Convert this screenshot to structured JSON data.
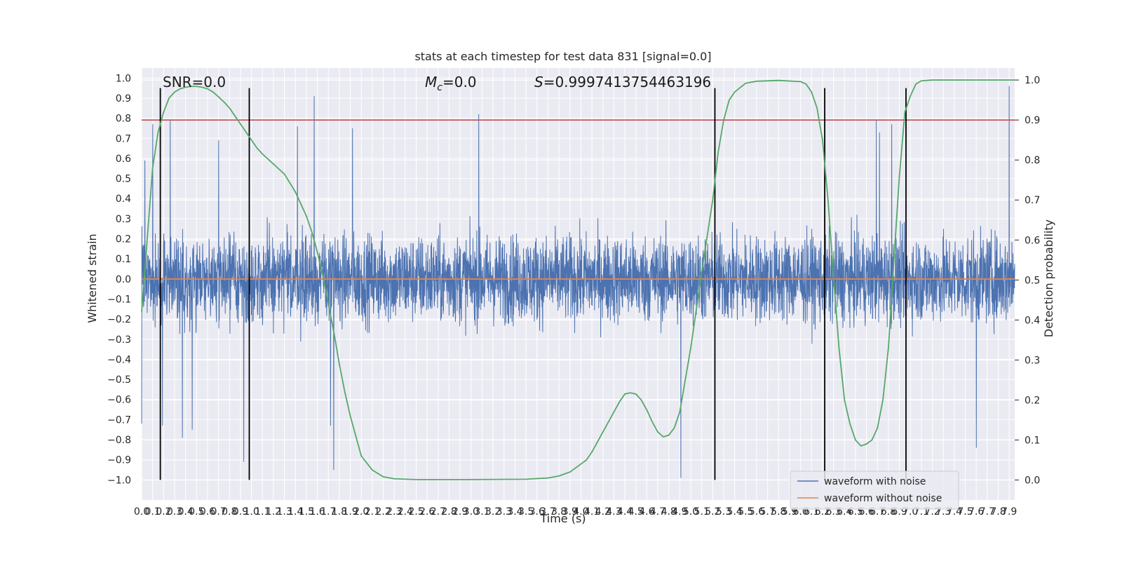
{
  "chart_data": {
    "type": "line",
    "title": "stats at each timestep for test data 831 [signal=0.0]",
    "xlabel": "Time (s)",
    "ylabel_left": "Whitened strain",
    "ylabel_right": "Detection probability",
    "xlim": [
      0.0,
      7.95
    ],
    "ylim_left": [
      -1.1,
      1.05
    ],
    "ylim_right": [
      -0.05,
      1.03
    ],
    "x_ticks": [
      "0.0",
      "0.1",
      "0.2",
      "0.3",
      "0.4",
      "0.5",
      "0.6",
      "0.7",
      "0.8",
      "0.9",
      "1.0",
      "1.1",
      "1.2",
      "1.3",
      "1.4",
      "1.5",
      "1.6",
      "1.7",
      "1.8",
      "1.9",
      "2.0",
      "2.1",
      "2.2",
      "2.3",
      "2.4",
      "2.5",
      "2.6",
      "2.7",
      "2.8",
      "2.9",
      "3.0",
      "3.1",
      "3.2",
      "3.3",
      "3.4",
      "3.5",
      "3.6",
      "3.7",
      "3.8",
      "3.9",
      "4.0",
      "4.1",
      "4.2",
      "4.3",
      "4.4",
      "4.5",
      "4.6",
      "4.7",
      "4.8",
      "4.9",
      "5.0",
      "5.1",
      "5.2",
      "5.3",
      "5.4",
      "5.5",
      "5.6",
      "5.7",
      "5.8",
      "5.9",
      "6.0",
      "6.1",
      "6.2",
      "6.3",
      "6.4",
      "6.5",
      "6.6",
      "6.7",
      "6.8",
      "6.9",
      "7.0",
      "7.1",
      "7.2",
      "7.3",
      "7.4",
      "7.5",
      "7.6",
      "7.7",
      "7.8",
      "7.9"
    ],
    "y_ticks_left": [
      "−1.0",
      "−0.9",
      "−0.8",
      "−0.7",
      "−0.6",
      "−0.5",
      "−0.4",
      "−0.3",
      "−0.2",
      "−0.1",
      "0.0",
      "0.1",
      "0.2",
      "0.3",
      "0.4",
      "0.5",
      "0.6",
      "0.7",
      "0.8",
      "0.9",
      "1.0"
    ],
    "y_ticks_right": [
      "0.0",
      "0.1",
      "0.2",
      "0.3",
      "0.4",
      "0.5",
      "0.6",
      "0.7",
      "0.8",
      "0.9",
      "1.0"
    ],
    "annotations": {
      "snr": "SNR=0.0",
      "mc_symbol": "M",
      "mc_sub": "c",
      "mc_value": "=0.0",
      "s_symbol": "S",
      "s_value": "=0.9997413754463196"
    },
    "threshold": 0.9,
    "vertical_lines_x": [
      0.17,
      0.98,
      5.22,
      6.22,
      6.96
    ],
    "vertical_lines_yrange": [
      -1.0,
      0.95
    ],
    "series": [
      {
        "name": "waveform with noise",
        "axis": "left",
        "style": "noise",
        "n_samples": 4096,
        "envelope": 0.42,
        "spikes": [
          {
            "x": 0.03,
            "y": 0.59
          },
          {
            "x": 0.1,
            "y": 0.77
          },
          {
            "x": 0.26,
            "y": 0.79
          },
          {
            "x": 0.7,
            "y": 0.69
          },
          {
            "x": 0.93,
            "y": 0.77
          },
          {
            "x": 0.98,
            "y": 0.78
          },
          {
            "x": 1.42,
            "y": 0.76
          },
          {
            "x": 1.57,
            "y": 0.91
          },
          {
            "x": 1.92,
            "y": 0.75
          },
          {
            "x": 3.07,
            "y": 0.82
          },
          {
            "x": 6.69,
            "y": 0.79
          },
          {
            "x": 6.72,
            "y": 0.73
          },
          {
            "x": 6.83,
            "y": 0.77
          },
          {
            "x": 7.9,
            "y": 0.96
          },
          {
            "x": 0.0,
            "y": -0.72
          },
          {
            "x": 0.19,
            "y": -0.73
          },
          {
            "x": 0.37,
            "y": -0.79
          },
          {
            "x": 0.46,
            "y": -0.75
          },
          {
            "x": 0.93,
            "y": -0.91
          },
          {
            "x": 1.75,
            "y": -0.95
          },
          {
            "x": 1.72,
            "y": -0.73
          },
          {
            "x": 4.91,
            "y": -0.99
          },
          {
            "x": 7.6,
            "y": -0.84
          }
        ]
      },
      {
        "name": "waveform without noise",
        "axis": "left",
        "style": "line",
        "x": [
          0.0,
          7.95
        ],
        "y": [
          0.0,
          0.0
        ]
      },
      {
        "name": "",
        "axis": "right",
        "style": "line",
        "x": [
          0.0,
          0.1,
          0.15,
          0.2,
          0.25,
          0.3,
          0.35,
          0.4,
          0.45,
          0.5,
          0.55,
          0.6,
          0.65,
          0.7,
          0.75,
          0.8,
          0.85,
          0.9,
          0.95,
          1.0,
          1.05,
          1.1,
          1.2,
          1.3,
          1.4,
          1.5,
          1.55,
          1.6,
          1.65,
          1.7,
          1.75,
          1.8,
          1.85,
          1.9,
          1.95,
          2.0,
          2.1,
          2.2,
          2.3,
          2.5,
          3.0,
          3.5,
          3.7,
          3.8,
          3.9,
          4.0,
          4.05,
          4.1,
          4.2,
          4.3,
          4.35,
          4.4,
          4.45,
          4.5,
          4.55,
          4.6,
          4.65,
          4.7,
          4.75,
          4.8,
          4.85,
          4.9,
          5.0,
          5.1,
          5.2,
          5.25,
          5.3,
          5.35,
          5.4,
          5.5,
          5.6,
          5.8,
          6.0,
          6.05,
          6.1,
          6.15,
          6.2,
          6.25,
          6.3,
          6.35,
          6.4,
          6.45,
          6.5,
          6.55,
          6.6,
          6.65,
          6.7,
          6.75,
          6.8,
          6.85,
          6.9,
          6.95,
          7.0,
          7.05,
          7.1,
          7.2,
          7.95
        ],
        "y": [
          0.42,
          0.78,
          0.87,
          0.92,
          0.955,
          0.97,
          0.978,
          0.982,
          0.984,
          0.984,
          0.982,
          0.978,
          0.97,
          0.958,
          0.945,
          0.93,
          0.91,
          0.89,
          0.87,
          0.85,
          0.83,
          0.815,
          0.79,
          0.765,
          0.72,
          0.66,
          0.62,
          0.57,
          0.51,
          0.44,
          0.37,
          0.29,
          0.22,
          0.16,
          0.11,
          0.06,
          0.025,
          0.008,
          0.003,
          0.001,
          0.001,
          0.002,
          0.005,
          0.01,
          0.02,
          0.04,
          0.05,
          0.07,
          0.12,
          0.17,
          0.195,
          0.215,
          0.218,
          0.215,
          0.2,
          0.175,
          0.145,
          0.12,
          0.108,
          0.112,
          0.13,
          0.17,
          0.33,
          0.52,
          0.7,
          0.82,
          0.9,
          0.95,
          0.97,
          0.992,
          0.997,
          0.999,
          0.996,
          0.99,
          0.97,
          0.93,
          0.85,
          0.7,
          0.51,
          0.33,
          0.2,
          0.14,
          0.1,
          0.085,
          0.09,
          0.1,
          0.13,
          0.2,
          0.33,
          0.55,
          0.76,
          0.92,
          0.96,
          0.99,
          0.998,
          1.0,
          1.0
        ]
      }
    ],
    "legend": {
      "position": "lower-right",
      "entries": [
        "waveform with noise",
        "waveform without noise"
      ]
    },
    "grid": true,
    "colors": {
      "noise": "#4c72b0",
      "clean": "#dd8452",
      "prob": "#55a868",
      "threshold": "#c44e52",
      "vlines": "#000000",
      "plot_bg": "#eaeaf2",
      "grid": "#ffffff"
    }
  }
}
